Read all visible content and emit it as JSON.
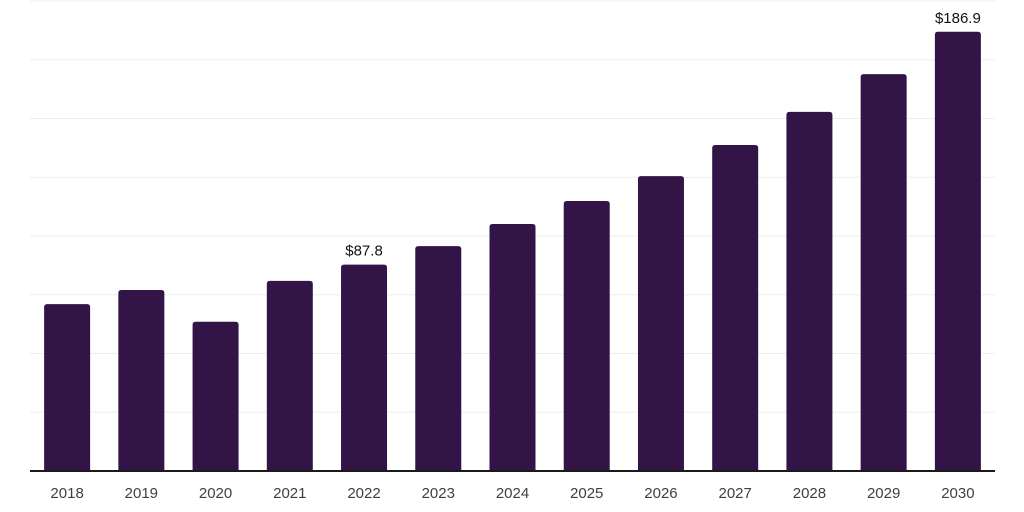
{
  "chart_data": {
    "type": "bar",
    "title": "",
    "xlabel": "",
    "ylabel": "",
    "categories": [
      "2018",
      "2019",
      "2020",
      "2021",
      "2022",
      "2023",
      "2024",
      "2025",
      "2026",
      "2027",
      "2028",
      "2029",
      "2030"
    ],
    "values": [
      71.0,
      77.0,
      63.5,
      80.9,
      87.8,
      95.7,
      105.1,
      114.9,
      125.5,
      138.7,
      152.8,
      168.9,
      186.9
    ],
    "labeled_points": [
      {
        "category": "2022",
        "label": "$87.8"
      },
      {
        "category": "2030",
        "label": "$186.9"
      }
    ],
    "ylim": [
      0,
      200
    ],
    "gridline_step": 25,
    "grid": "horizontal",
    "legend_position": "none",
    "colors": {
      "bar": "#321447",
      "axis_line": "#1a1a1a",
      "gridline": "#ededed",
      "tick_label": "#404040",
      "data_label": "#111111",
      "background": "#ffffff"
    }
  }
}
